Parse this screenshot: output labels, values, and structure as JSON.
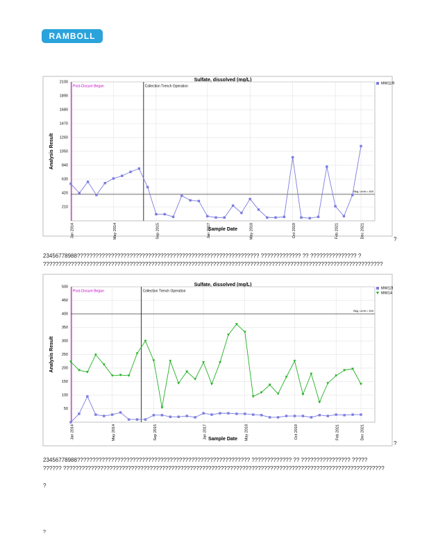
{
  "document": {
    "logo": "RAMBOLL",
    "captions": [
      "23456778988???????????????????????????????????????????????????????????  ?????????????        ?? ???????????????  ?",
      "??????????????????????????????????????????????????????????????????????????????????????????????????????????????",
      "23456778988????????????????????????????????????????????????????????  ?????????????        ?? ????????????????  ?????",
      "??????   ????????????????????????????????????????????????????????????????????????????????????????????????????????"
    ],
    "marks": [
      "?",
      "?",
      "?",
      "?"
    ]
  },
  "chart_data": [
    {
      "type": "line",
      "title": "Sulfate, dissolved (mg/L)",
      "xlabel": "Sample Date",
      "ylabel": "Analysis Result",
      "annotations": [
        "Post-Closure Began",
        "Collection Trench Operation"
      ],
      "reference_line": {
        "value": 400,
        "label": "Bkg. Limit = 400"
      },
      "categories": [
        "Jan 2014",
        null,
        null,
        null,
        null,
        "May 2014",
        null,
        null,
        null,
        null,
        "Sep 2015",
        null,
        null,
        null,
        null,
        null,
        "Jan 2017",
        null,
        null,
        null,
        null,
        "May 2018",
        null,
        null,
        null,
        null,
        "Oct 2019",
        null,
        null,
        null,
        null,
        "Feb 2021",
        null,
        null,
        "Dec 2021"
      ],
      "series": [
        {
          "name": "MW11R",
          "color": "#7b7be0",
          "marker": "square",
          "values": [
            560,
            420,
            590,
            390,
            570,
            640,
            680,
            740,
            790,
            510,
            100,
            100,
            60,
            380,
            310,
            300,
            70,
            50,
            50,
            230,
            120,
            330,
            170,
            50,
            50,
            60,
            960,
            50,
            40,
            60,
            820,
            220,
            70,
            390,
            1130
          ]
        }
      ],
      "ylim": [
        0,
        2100
      ],
      "yticks": [
        210,
        420,
        630,
        840,
        1050,
        1260,
        1470,
        1680,
        1890,
        2100
      ],
      "grid": true
    },
    {
      "type": "line",
      "title": "Sulfate, dissolved (mg/L)",
      "xlabel": "Sample Date",
      "ylabel": "Analysis Result",
      "annotations": [
        "Post-Closure Began",
        "Collection Trench Operation"
      ],
      "reference_line": {
        "value": 400,
        "label": "Bkg. Limit = 400"
      },
      "categories": [
        "Jan 2014",
        null,
        null,
        null,
        null,
        "May 2014",
        null,
        null,
        null,
        null,
        "Sep 2015",
        null,
        null,
        null,
        null,
        null,
        "Jan 2017",
        null,
        null,
        null,
        null,
        "May 2018",
        null,
        null,
        null,
        null,
        null,
        "Oct 2019",
        null,
        null,
        null,
        null,
        "Feb 2021",
        null,
        null,
        "Dec 2021"
      ],
      "series": [
        {
          "name": "MW12I",
          "color": "#7b7be0",
          "marker": "square",
          "values": [
            0,
            31,
            95,
            28,
            23,
            28,
            36,
            10,
            10,
            10,
            26,
            26,
            20,
            20,
            23,
            18,
            33,
            28,
            33,
            33,
            31,
            31,
            28,
            26,
            18,
            18,
            23,
            23,
            23,
            18,
            26,
            23,
            28,
            26,
            28,
            28
          ]
        },
        {
          "name": "MW14",
          "color": "#22b022",
          "marker": "triangle",
          "values": [
            223,
            192,
            185,
            249,
            213,
            172,
            174,
            172,
            254,
            300,
            228,
            54,
            226,
            144,
            187,
            159,
            221,
            141,
            221,
            323,
            362,
            333,
            95,
            110,
            138,
            105,
            167,
            226,
            103,
            179,
            74,
            144,
            172,
            192,
            197,
            141
          ]
        }
      ],
      "ylim": [
        0,
        500
      ],
      "yticks": [
        50,
        100,
        150,
        200,
        250,
        300,
        350,
        400,
        450,
        500
      ],
      "grid": true
    }
  ]
}
